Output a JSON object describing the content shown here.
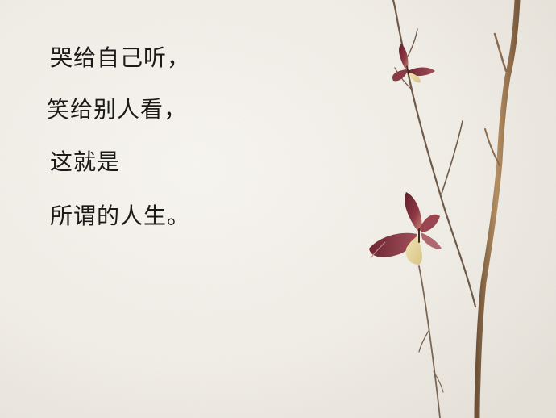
{
  "poem": {
    "lines": [
      "哭给自己听，",
      "笑给别人看，",
      "这就是",
      "所谓的人生。"
    ]
  },
  "colors": {
    "background": "#f3f0ea",
    "text": "#1c1a18",
    "branch": "#8a6a4a",
    "butterfly_wing": "#7a2a35",
    "butterfly_light": "#e8d9a8"
  }
}
